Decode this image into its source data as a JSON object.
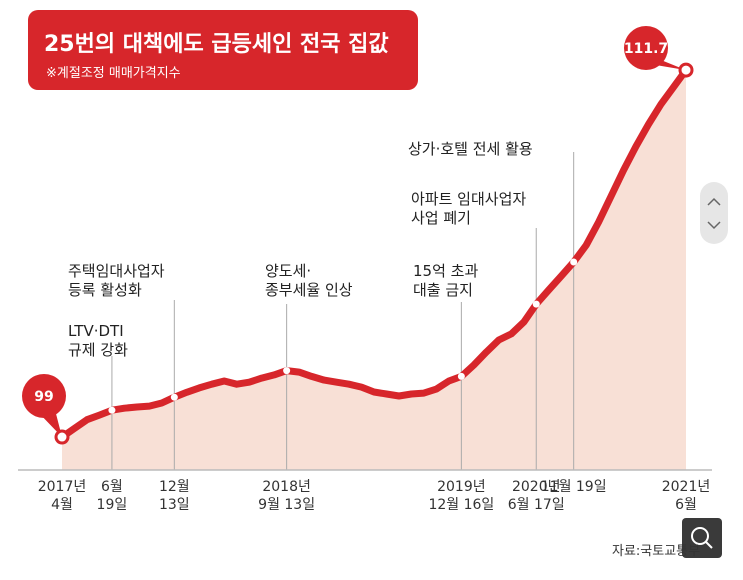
{
  "chart_data": {
    "type": "line",
    "title": "25번의 대책에도 급등세인 전국 집값",
    "subtitle": "※계절조정 매매가격지수",
    "source": "자료:국토교통부",
    "categories": [
      "2017년\n4월",
      null,
      null,
      null,
      "6월\n19일",
      null,
      null,
      null,
      null,
      "12월\n13일",
      null,
      null,
      null,
      null,
      null,
      null,
      null,
      null,
      "2018년\n9월 13일",
      null,
      null,
      null,
      null,
      null,
      null,
      null,
      null,
      null,
      null,
      null,
      null,
      null,
      "2019년\n12월 16일",
      null,
      null,
      null,
      null,
      null,
      "2020년\n6월 17일",
      null,
      null,
      "11월 19일",
      null,
      null,
      null,
      null,
      null,
      null,
      null,
      null,
      "2021년\n6월"
    ],
    "values": [
      99,
      99.3,
      99.6,
      99.76,
      99.93,
      100.0,
      100.04,
      100.07,
      100.18,
      100.38,
      100.55,
      100.7,
      100.83,
      100.94,
      100.83,
      100.9,
      101.04,
      101.15,
      101.3,
      101.25,
      101.1,
      100.97,
      100.9,
      100.83,
      100.73,
      100.56,
      100.49,
      100.42,
      100.49,
      100.52,
      100.66,
      100.94,
      101.1,
      101.49,
      101.94,
      102.36,
      102.57,
      102.98,
      103.6,
      104.09,
      104.57,
      105.06,
      105.64,
      106.44,
      107.34,
      108.24,
      109.07,
      109.83,
      110.52,
      111.11,
      111.7
    ],
    "color": "#d7262b",
    "fill_color": "#f8e0d6",
    "ylim": [
      97.86,
      112.05
    ],
    "annotations": [
      "LTV·DTI\n규제 강화",
      "주택임대사업자\n등록 활성화",
      "양도세·\n종부세율 인상",
      "15억 초과\n대출 금지",
      "아파트 임대사업자\n사업 폐기",
      "상가·호텔 전세 활용"
    ]
  }
}
